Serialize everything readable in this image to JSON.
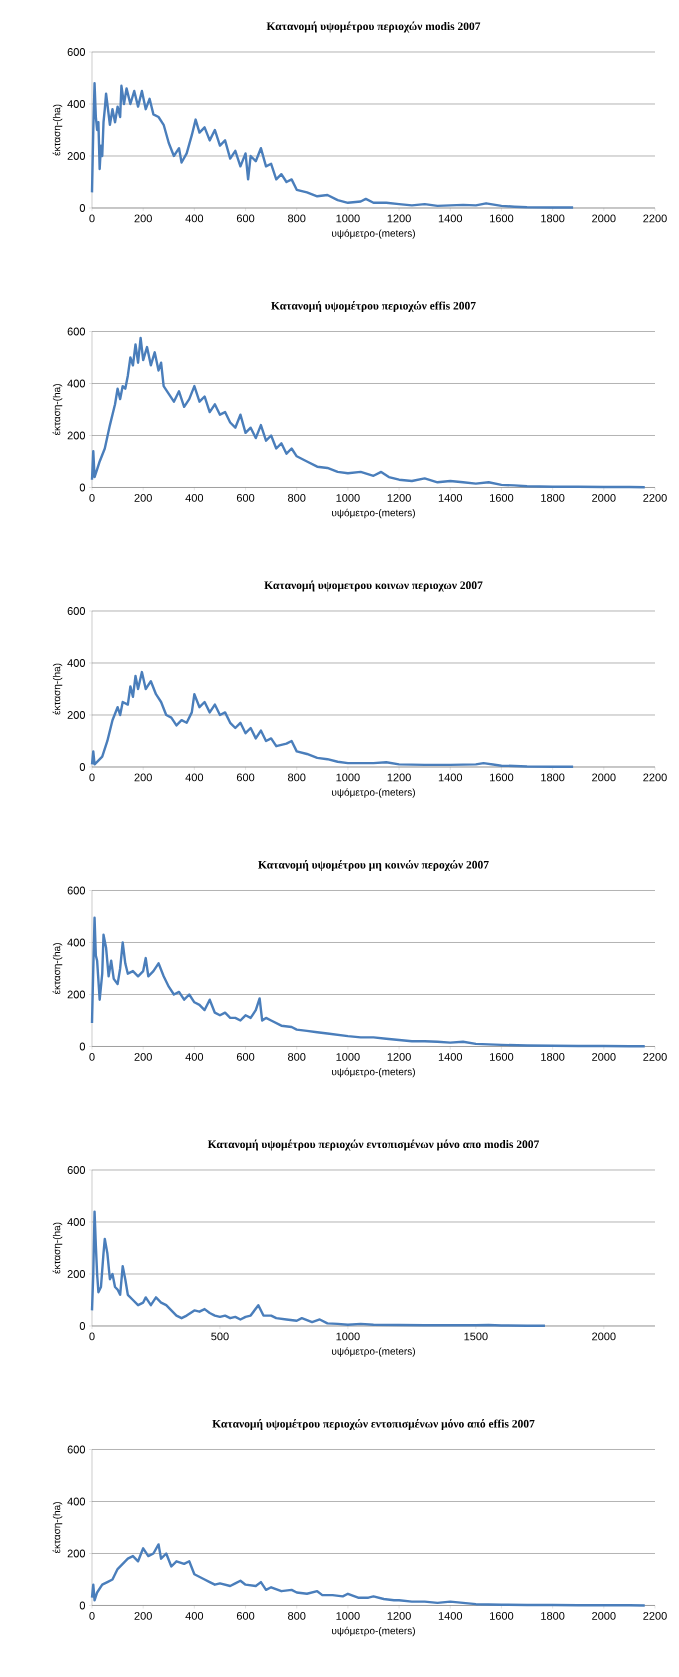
{
  "chart_data": [
    {
      "type": "line",
      "title": "Κατανομή υψομέτρου περιοχών modis 2007",
      "xlabel": "υψόμετρο-(meters)",
      "ylabel": "έκταση-(ha)",
      "color": "#4a7ebb",
      "grid": "y",
      "xlim": [
        0,
        2200
      ],
      "ylim": [
        0,
        600
      ],
      "xticks": [
        0,
        200,
        400,
        600,
        800,
        1000,
        1200,
        1400,
        1600,
        1800,
        2000,
        2200
      ],
      "yticks": [
        0,
        200,
        400,
        600
      ],
      "x": [
        0,
        5,
        10,
        15,
        20,
        25,
        30,
        35,
        40,
        45,
        50,
        55,
        60,
        70,
        80,
        90,
        100,
        110,
        115,
        125,
        135,
        150,
        165,
        180,
        195,
        210,
        225,
        240,
        260,
        280,
        300,
        320,
        340,
        350,
        370,
        390,
        405,
        420,
        440,
        460,
        480,
        500,
        520,
        540,
        560,
        580,
        600,
        610,
        620,
        640,
        660,
        680,
        700,
        720,
        740,
        760,
        780,
        800,
        840,
        880,
        920,
        960,
        1000,
        1050,
        1070,
        1100,
        1150,
        1200,
        1250,
        1300,
        1350,
        1400,
        1450,
        1500,
        1540,
        1600,
        1650,
        1700,
        1800,
        1880
      ],
      "values": [
        60,
        300,
        480,
        350,
        300,
        330,
        150,
        240,
        200,
        330,
        380,
        440,
        400,
        320,
        380,
        330,
        390,
        350,
        470,
        400,
        460,
        400,
        450,
        390,
        450,
        380,
        420,
        360,
        350,
        320,
        250,
        200,
        230,
        175,
        210,
        280,
        340,
        290,
        310,
        260,
        300,
        240,
        260,
        190,
        220,
        160,
        210,
        110,
        200,
        180,
        230,
        160,
        170,
        110,
        130,
        100,
        110,
        70,
        60,
        45,
        50,
        30,
        20,
        25,
        35,
        20,
        20,
        15,
        10,
        15,
        8,
        10,
        12,
        10,
        18,
        8,
        5,
        3,
        2,
        2
      ]
    },
    {
      "type": "line",
      "title": "Κατανομή υψομέτρου περιοχών effis 2007",
      "xlabel": "υψόμετρο-(meters)",
      "ylabel": "έκταση-(ha)",
      "color": "#4a7ebb",
      "grid": "y",
      "xlim": [
        0,
        2200
      ],
      "ylim": [
        0,
        600
      ],
      "xticks": [
        0,
        200,
        400,
        600,
        800,
        1000,
        1200,
        1400,
        1600,
        1800,
        2000,
        2200
      ],
      "yticks": [
        0,
        200,
        400,
        600
      ],
      "x": [
        0,
        5,
        10,
        20,
        30,
        50,
        70,
        90,
        100,
        110,
        120,
        130,
        140,
        150,
        160,
        170,
        180,
        190,
        200,
        215,
        230,
        245,
        260,
        270,
        280,
        300,
        320,
        340,
        360,
        380,
        400,
        420,
        440,
        460,
        480,
        500,
        520,
        540,
        560,
        580,
        600,
        620,
        640,
        660,
        680,
        700,
        720,
        740,
        760,
        780,
        800,
        840,
        880,
        920,
        960,
        1000,
        1050,
        1100,
        1130,
        1160,
        1200,
        1250,
        1300,
        1350,
        1400,
        1450,
        1500,
        1550,
        1600,
        1650,
        1700,
        1800,
        1900,
        2000,
        2100,
        2160
      ],
      "values": [
        30,
        140,
        40,
        70,
        100,
        150,
        240,
        320,
        380,
        340,
        390,
        380,
        430,
        500,
        470,
        550,
        480,
        575,
        490,
        540,
        470,
        520,
        450,
        480,
        390,
        360,
        330,
        370,
        310,
        340,
        390,
        330,
        350,
        290,
        320,
        280,
        290,
        250,
        230,
        280,
        210,
        230,
        190,
        240,
        180,
        200,
        150,
        170,
        130,
        150,
        120,
        100,
        80,
        75,
        60,
        55,
        60,
        45,
        60,
        40,
        30,
        25,
        35,
        20,
        25,
        20,
        15,
        20,
        10,
        8,
        5,
        3,
        3,
        2,
        2,
        1
      ]
    },
    {
      "type": "line",
      "title": "Κατανομή υψομετρου κοινων περιοχων 2007",
      "xlabel": "υψόμετρο-(meters)",
      "ylabel": "έκταση-(ha)",
      "color": "#4a7ebb",
      "grid": "y",
      "xlim": [
        0,
        2200
      ],
      "ylim": [
        0,
        600
      ],
      "xticks": [
        0,
        200,
        400,
        600,
        800,
        1000,
        1200,
        1400,
        1600,
        1800,
        2000,
        2200
      ],
      "yticks": [
        0,
        200,
        400,
        600
      ],
      "x": [
        0,
        5,
        10,
        20,
        40,
        60,
        80,
        100,
        110,
        120,
        140,
        150,
        160,
        170,
        180,
        195,
        210,
        230,
        250,
        270,
        290,
        310,
        330,
        350,
        370,
        390,
        400,
        420,
        440,
        460,
        480,
        500,
        520,
        540,
        560,
        580,
        600,
        620,
        640,
        660,
        680,
        700,
        720,
        760,
        780,
        800,
        840,
        880,
        920,
        960,
        1000,
        1100,
        1150,
        1200,
        1300,
        1400,
        1500,
        1530,
        1600,
        1650,
        1700,
        1800,
        1880
      ],
      "values": [
        10,
        60,
        10,
        20,
        40,
        100,
        180,
        230,
        200,
        250,
        240,
        310,
        270,
        350,
        300,
        365,
        300,
        330,
        280,
        250,
        200,
        190,
        160,
        180,
        170,
        210,
        280,
        230,
        250,
        210,
        240,
        200,
        210,
        170,
        150,
        170,
        130,
        150,
        110,
        140,
        100,
        110,
        80,
        90,
        100,
        60,
        50,
        35,
        30,
        20,
        15,
        15,
        18,
        10,
        8,
        8,
        10,
        15,
        5,
        4,
        2,
        1,
        1
      ]
    },
    {
      "type": "line",
      "title": "Κατανομή υψομέτρου μη κοινών περοχών 2007",
      "xlabel": "υψόμετρο-(meters)",
      "ylabel": "έκταση-(ha)",
      "color": "#4a7ebb",
      "grid": "y",
      "xlim": [
        0,
        2200
      ],
      "ylim": [
        0,
        600
      ],
      "xticks": [
        0,
        200,
        400,
        600,
        800,
        1000,
        1200,
        1400,
        1600,
        1800,
        2000,
        2200
      ],
      "yticks": [
        0,
        200,
        400,
        600
      ],
      "x": [
        0,
        5,
        10,
        15,
        20,
        30,
        40,
        45,
        55,
        65,
        75,
        85,
        100,
        110,
        120,
        130,
        140,
        160,
        180,
        200,
        210,
        220,
        240,
        260,
        280,
        300,
        320,
        340,
        360,
        380,
        400,
        420,
        440,
        460,
        480,
        500,
        520,
        540,
        560,
        580,
        600,
        620,
        640,
        655,
        665,
        680,
        700,
        740,
        780,
        800,
        840,
        880,
        920,
        960,
        1000,
        1050,
        1100,
        1150,
        1200,
        1250,
        1300,
        1350,
        1400,
        1450,
        1500,
        1600,
        1700,
        1800,
        1900,
        2000,
        2100,
        2160
      ],
      "values": [
        90,
        300,
        495,
        350,
        330,
        180,
        280,
        430,
        380,
        270,
        330,
        260,
        240,
        300,
        400,
        320,
        280,
        290,
        270,
        290,
        340,
        270,
        290,
        320,
        270,
        230,
        200,
        210,
        180,
        200,
        170,
        160,
        140,
        180,
        130,
        120,
        130,
        110,
        110,
        100,
        120,
        110,
        140,
        185,
        100,
        110,
        100,
        80,
        75,
        65,
        60,
        55,
        50,
        45,
        40,
        35,
        35,
        30,
        25,
        20,
        20,
        18,
        15,
        18,
        10,
        6,
        4,
        3,
        2,
        2,
        1,
        1
      ]
    },
    {
      "type": "line",
      "title": "Κατανομή υψομέτρου περιοχών εντοπισμένων μόνο απο modis 2007",
      "xlabel": "υψόμετρο-(meters)",
      "ylabel": "έκταση-(ha)",
      "color": "#4a7ebb",
      "grid": "y",
      "xlim": [
        0,
        2200
      ],
      "ylim": [
        0,
        600
      ],
      "xticks": [
        0,
        500,
        1000,
        1500,
        2000
      ],
      "yticks": [
        0,
        200,
        400,
        600
      ],
      "x": [
        0,
        5,
        10,
        15,
        20,
        25,
        35,
        45,
        50,
        60,
        70,
        80,
        90,
        100,
        110,
        120,
        130,
        140,
        160,
        180,
        200,
        210,
        230,
        250,
        270,
        290,
        310,
        330,
        350,
        370,
        400,
        420,
        440,
        460,
        480,
        500,
        520,
        540,
        560,
        580,
        600,
        620,
        650,
        670,
        700,
        720,
        760,
        800,
        820,
        860,
        890,
        920,
        960,
        1000,
        1050,
        1100,
        1200,
        1300,
        1400,
        1500,
        1550,
        1600,
        1700,
        1770
      ],
      "values": [
        60,
        200,
        440,
        310,
        200,
        130,
        150,
        280,
        335,
        280,
        180,
        200,
        150,
        140,
        120,
        230,
        180,
        120,
        100,
        80,
        90,
        110,
        80,
        110,
        90,
        80,
        60,
        40,
        30,
        40,
        60,
        55,
        65,
        50,
        40,
        35,
        40,
        30,
        35,
        25,
        35,
        40,
        80,
        40,
        40,
        30,
        25,
        20,
        30,
        15,
        25,
        10,
        8,
        5,
        8,
        5,
        4,
        3,
        3,
        3,
        4,
        2,
        1,
        1
      ]
    },
    {
      "type": "line",
      "title": "Κατανομή υψομέτρου περιοχών εντοπισμένων μόνο από effis 2007",
      "xlabel": "υψόμετρο-(meters)",
      "ylabel": "έκταση-(ha)",
      "color": "#4a7ebb",
      "grid": "y",
      "xlim": [
        0,
        2200
      ],
      "ylim": [
        0,
        600
      ],
      "xticks": [
        0,
        200,
        400,
        600,
        800,
        1000,
        1200,
        1400,
        1600,
        1800,
        2000,
        2200
      ],
      "yticks": [
        0,
        200,
        400,
        600
      ],
      "x": [
        0,
        5,
        10,
        20,
        40,
        60,
        80,
        100,
        120,
        140,
        160,
        180,
        200,
        220,
        240,
        260,
        270,
        290,
        310,
        330,
        360,
        380,
        400,
        420,
        440,
        460,
        480,
        500,
        540,
        560,
        580,
        600,
        640,
        660,
        680,
        700,
        740,
        780,
        800,
        840,
        880,
        900,
        940,
        980,
        1000,
        1040,
        1080,
        1100,
        1140,
        1180,
        1200,
        1250,
        1300,
        1350,
        1400,
        1450,
        1500,
        1600,
        1700,
        1800,
        1900,
        2000,
        2100,
        2160
      ],
      "values": [
        30,
        80,
        20,
        50,
        80,
        90,
        100,
        140,
        160,
        180,
        190,
        170,
        220,
        190,
        200,
        235,
        180,
        200,
        150,
        170,
        160,
        170,
        120,
        110,
        100,
        90,
        80,
        85,
        75,
        85,
        95,
        80,
        75,
        90,
        60,
        70,
        55,
        60,
        50,
        45,
        55,
        40,
        40,
        35,
        45,
        30,
        30,
        35,
        25,
        20,
        20,
        15,
        15,
        10,
        15,
        10,
        5,
        3,
        2,
        2,
        1,
        1,
        1,
        0
      ]
    }
  ]
}
